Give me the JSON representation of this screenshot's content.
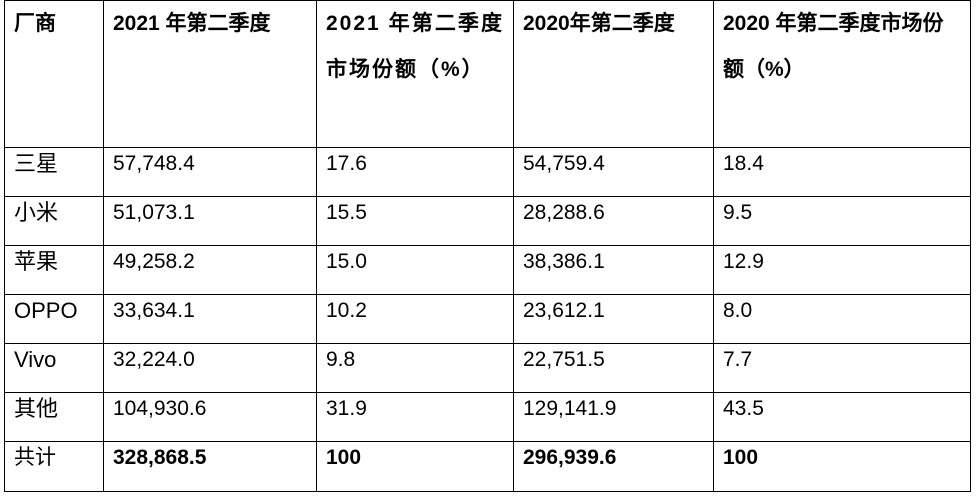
{
  "table": {
    "headers": [
      "厂商",
      "2021 年第二季度",
      "2021 年第二季度市场份额（%）",
      "2020年第二季度",
      "2020 年第二季度市场份额（%）"
    ],
    "rows": [
      [
        "三星",
        "57,748.4",
        "17.6",
        "54,759.4",
        "18.4"
      ],
      [
        "小米",
        "51,073.1",
        "15.5",
        "28,288.6",
        "9.5"
      ],
      [
        "苹果",
        "49,258.2",
        "15.0",
        "38,386.1",
        "12.9"
      ],
      [
        "OPPO",
        "33,634.1",
        "10.2",
        "23,612.1",
        "8.0"
      ],
      [
        "Vivo",
        "32,224.0",
        "9.8",
        "22,751.5",
        "7.7"
      ],
      [
        "其他",
        "104,930.6",
        "31.9",
        "129,141.9",
        "43.5"
      ]
    ],
    "total": [
      "共计",
      "328,868.5",
      "100",
      "296,939.6",
      "100"
    ]
  }
}
